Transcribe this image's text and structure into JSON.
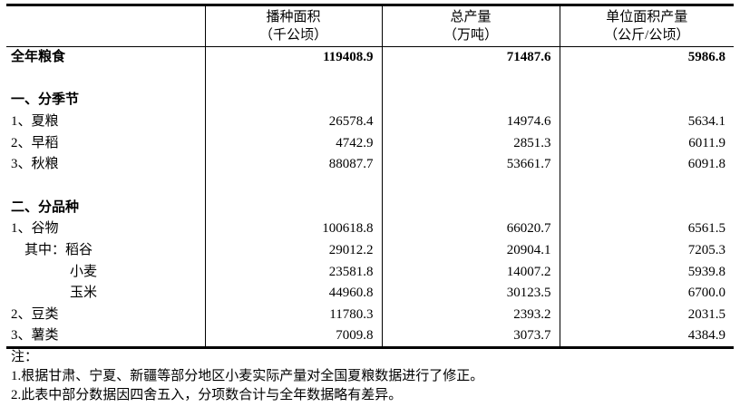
{
  "headers": [
    {
      "line1": "",
      "line2": ""
    },
    {
      "line1": "播种面积",
      "line2": "（千公顷）"
    },
    {
      "line1": "总产量",
      "line2": "（万吨）"
    },
    {
      "line1": "单位面积产量",
      "line2": "（公斤/公顷）"
    }
  ],
  "rows": [
    {
      "label": "全年粮食",
      "area": "119408.9",
      "output": "71487.6",
      "yield": "5986.8"
    },
    {
      "label": "",
      "area": "",
      "output": "",
      "yield": ""
    },
    {
      "label": "一、分季节",
      "area": "",
      "output": "",
      "yield": ""
    },
    {
      "label": "1、夏粮",
      "area": "26578.4",
      "output": "14974.6",
      "yield": "5634.1"
    },
    {
      "label": "2、早稻",
      "area": "4742.9",
      "output": "2851.3",
      "yield": "6011.9"
    },
    {
      "label": "3、秋粮",
      "area": "88087.7",
      "output": "53661.7",
      "yield": "6091.8"
    },
    {
      "label": "",
      "area": "",
      "output": "",
      "yield": ""
    },
    {
      "label": "二、分品种",
      "area": "",
      "output": "",
      "yield": ""
    },
    {
      "label": "1、谷物",
      "area": "100618.8",
      "output": "66020.7",
      "yield": "6561.5"
    },
    {
      "label": "其中：稻谷",
      "area": "29012.2",
      "output": "20904.1",
      "yield": "7205.3"
    },
    {
      "label": "小麦",
      "area": "23581.8",
      "output": "14007.2",
      "yield": "5939.8"
    },
    {
      "label": "玉米",
      "area": "44960.8",
      "output": "30123.5",
      "yield": "6700.0"
    },
    {
      "label": "2、豆类",
      "area": "11780.3",
      "output": "2393.2",
      "yield": "2031.5"
    },
    {
      "label": "3、薯类",
      "area": "7009.8",
      "output": "3073.7",
      "yield": "4384.9"
    }
  ],
  "notes": {
    "title": "注：",
    "items": [
      "1.根据甘肃、宁夏、新疆等部分地区小麦实际产量对全国夏粮数据进行了修正。",
      "2.此表中部分数据因四舍五入，分项数合计与全年数据略有差异。"
    ]
  }
}
